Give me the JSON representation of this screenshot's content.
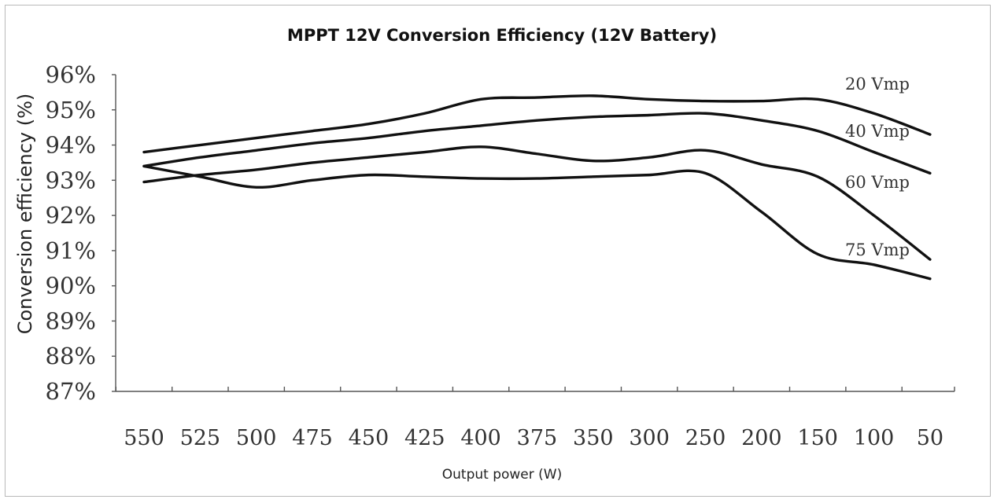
{
  "chart_data": {
    "type": "line",
    "title": "MPPT 12V Conversion Efficiency (12V Battery)",
    "xlabel": "Output power (W)",
    "ylabel": "Conversion efficiency (%)",
    "x": [
      550,
      525,
      500,
      475,
      450,
      425,
      400,
      375,
      350,
      300,
      250,
      200,
      150,
      100,
      50
    ],
    "x_tick_labels": [
      "550",
      "525",
      "500",
      "475",
      "450",
      "425",
      "400",
      "375",
      "350",
      "300",
      "250",
      "200",
      "150",
      "100",
      "50"
    ],
    "y_tick_labels": [
      "87%",
      "88%",
      "89%",
      "90%",
      "91%",
      "92%",
      "93%",
      "94%",
      "95%",
      "96%"
    ],
    "ylim": [
      87,
      96
    ],
    "grid": false,
    "legend": "none",
    "series": [
      {
        "name": "20 Vmp",
        "values": [
          93.8,
          94.0,
          94.2,
          94.4,
          94.6,
          94.9,
          95.3,
          95.35,
          95.4,
          95.3,
          95.25,
          95.25,
          95.3,
          94.9,
          94.3
        ]
      },
      {
        "name": "40 Vmp",
        "values": [
          93.4,
          93.65,
          93.85,
          94.05,
          94.2,
          94.4,
          94.55,
          94.7,
          94.8,
          94.85,
          94.9,
          94.7,
          94.4,
          93.8,
          93.2
        ]
      },
      {
        "name": "60 Vmp",
        "values": [
          92.95,
          93.15,
          93.3,
          93.5,
          93.65,
          93.8,
          93.95,
          93.75,
          93.55,
          93.65,
          93.85,
          93.45,
          93.1,
          92.0,
          90.75
        ]
      },
      {
        "name": "75 Vmp",
        "values": [
          93.4,
          93.1,
          92.8,
          93.0,
          93.15,
          93.1,
          93.05,
          93.05,
          93.1,
          93.15,
          93.2,
          92.1,
          90.9,
          90.6,
          90.2
        ]
      }
    ]
  }
}
